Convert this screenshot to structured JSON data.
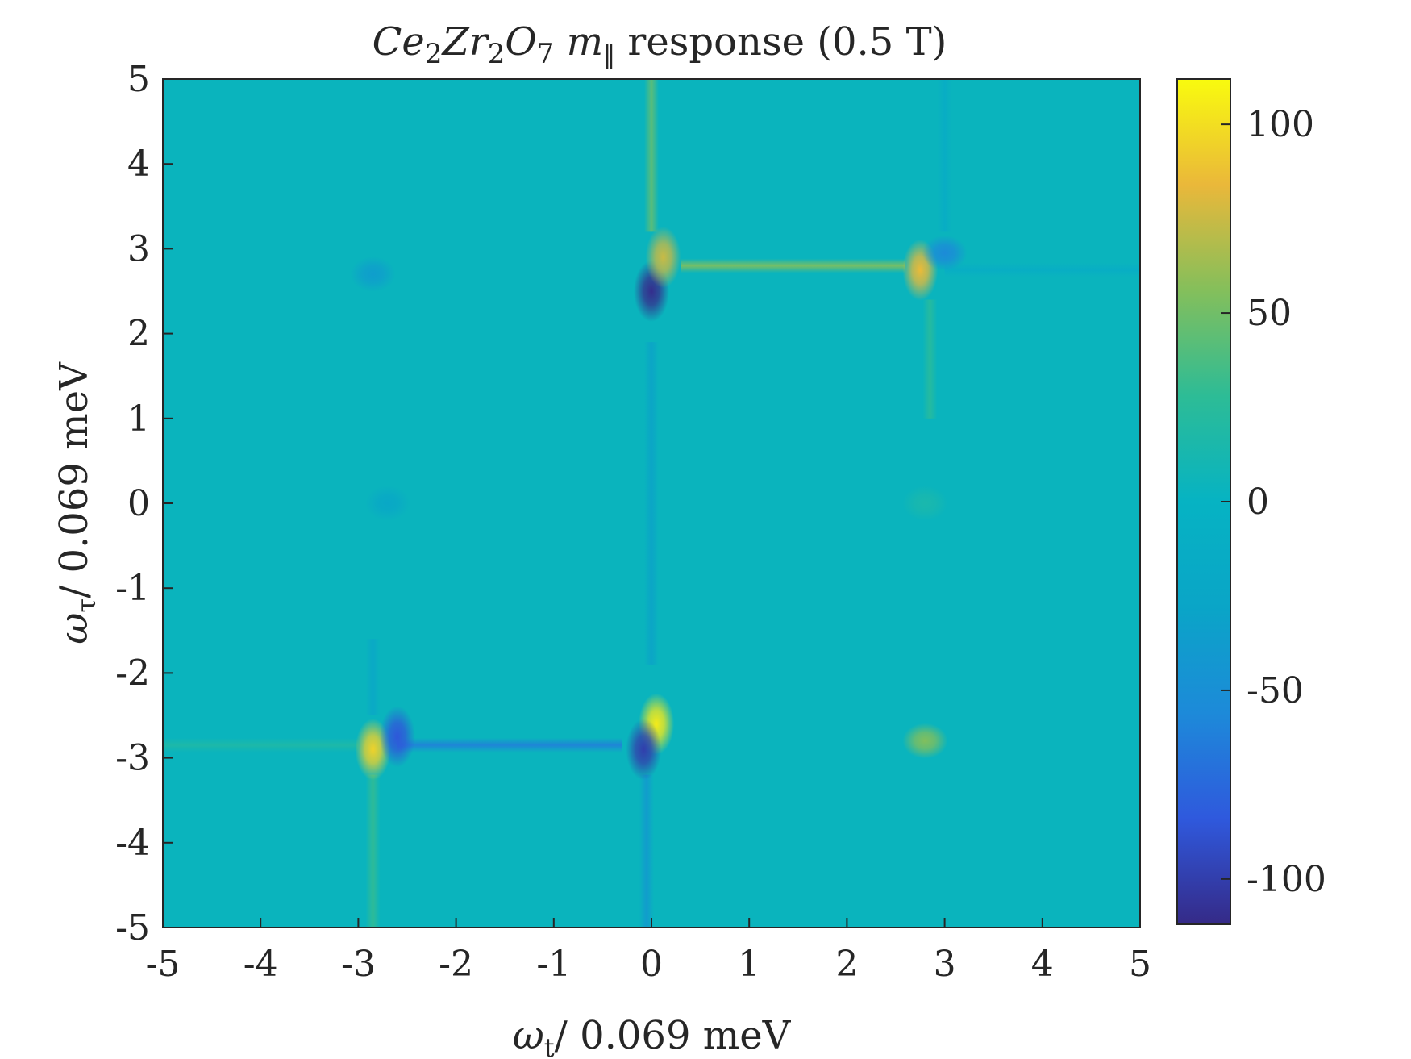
{
  "chart_data": {
    "type": "heatmap",
    "title": {
      "sym1": "Ce",
      "sub1": "2",
      "sym2": "Zr",
      "sub2": "2",
      "sym3": "O",
      "sub3": "7",
      "sym4": "m",
      "sub4": "‖",
      "rest": " response (0.5 T)"
    },
    "xlabel": {
      "sym": "ω",
      "sub": "t",
      "rest": "/ 0.069 meV"
    },
    "ylabel": {
      "sym": "ω",
      "sub": "τ",
      "rest": "/ 0.069 meV"
    },
    "xlim": [
      -5,
      5
    ],
    "ylim": [
      -5,
      5
    ],
    "xticks": [
      -5,
      -4,
      -3,
      -2,
      -1,
      0,
      1,
      2,
      3,
      4,
      5
    ],
    "yticks": [
      -5,
      -4,
      -3,
      -2,
      -1,
      0,
      1,
      2,
      3,
      4,
      5
    ],
    "xtick_labels": [
      "-5",
      "-4",
      "-3",
      "-2",
      "-1",
      "0",
      "1",
      "2",
      "3",
      "4",
      "5"
    ],
    "ytick_labels": [
      "-5",
      "-4",
      "-3",
      "-2",
      "-1",
      "0",
      "1",
      "2",
      "3",
      "4",
      "5"
    ],
    "colorbar": {
      "range": [
        -112,
        112
      ],
      "ticks": [
        -100,
        -50,
        0,
        50,
        100
      ],
      "tick_labels": [
        "-100",
        "-50",
        "0",
        "50",
        "100"
      ],
      "colormap": "parula"
    },
    "background_value": 0,
    "features": [
      {
        "x": 0.0,
        "y": 2.5,
        "value": -110
      },
      {
        "x": 0.12,
        "y": 2.9,
        "value": 75
      },
      {
        "x": 2.75,
        "y": 2.75,
        "value": 85
      },
      {
        "x": 3.0,
        "y": 2.95,
        "value": -55
      },
      {
        "x": -2.85,
        "y": 2.7,
        "value": -35
      },
      {
        "x": 0.05,
        "y": -2.6,
        "value": 105
      },
      {
        "x": -0.08,
        "y": -2.9,
        "value": -100
      },
      {
        "x": -2.85,
        "y": -2.9,
        "value": 95
      },
      {
        "x": -2.6,
        "y": -2.75,
        "value": -85
      },
      {
        "x": 2.8,
        "y": -2.8,
        "value": 55
      },
      {
        "x": -2.7,
        "y": 0.0,
        "value": -22
      },
      {
        "x": 2.8,
        "y": 0.0,
        "value": 14
      }
    ],
    "ridges": [
      {
        "orientation": "horizontal",
        "at": 2.8,
        "from": 0.3,
        "to": 2.6,
        "value": 55
      },
      {
        "orientation": "horizontal",
        "at": 2.75,
        "from": 3.0,
        "to": 5.0,
        "value": -12
      },
      {
        "orientation": "horizontal",
        "at": -2.85,
        "from": -2.6,
        "to": -0.3,
        "value": -62
      },
      {
        "orientation": "horizontal",
        "at": -2.85,
        "from": -5.0,
        "to": -3.0,
        "value": 18
      },
      {
        "orientation": "vertical",
        "at": 0.0,
        "from": 3.2,
        "to": 5.0,
        "value": 45
      },
      {
        "orientation": "vertical",
        "at": 0.0,
        "from": -1.9,
        "to": 1.9,
        "value": -30
      },
      {
        "orientation": "vertical",
        "at": -0.05,
        "from": -5.0,
        "to": -3.2,
        "value": -40
      },
      {
        "orientation": "vertical",
        "at": 2.85,
        "from": 1.0,
        "to": 2.4,
        "value": 25
      },
      {
        "orientation": "vertical",
        "at": -2.85,
        "from": -5.0,
        "to": -3.2,
        "value": 30
      },
      {
        "orientation": "vertical",
        "at": 3.0,
        "from": 3.2,
        "to": 5.0,
        "value": -15
      },
      {
        "orientation": "vertical",
        "at": -2.85,
        "from": -2.5,
        "to": -1.6,
        "value": -25
      }
    ]
  }
}
